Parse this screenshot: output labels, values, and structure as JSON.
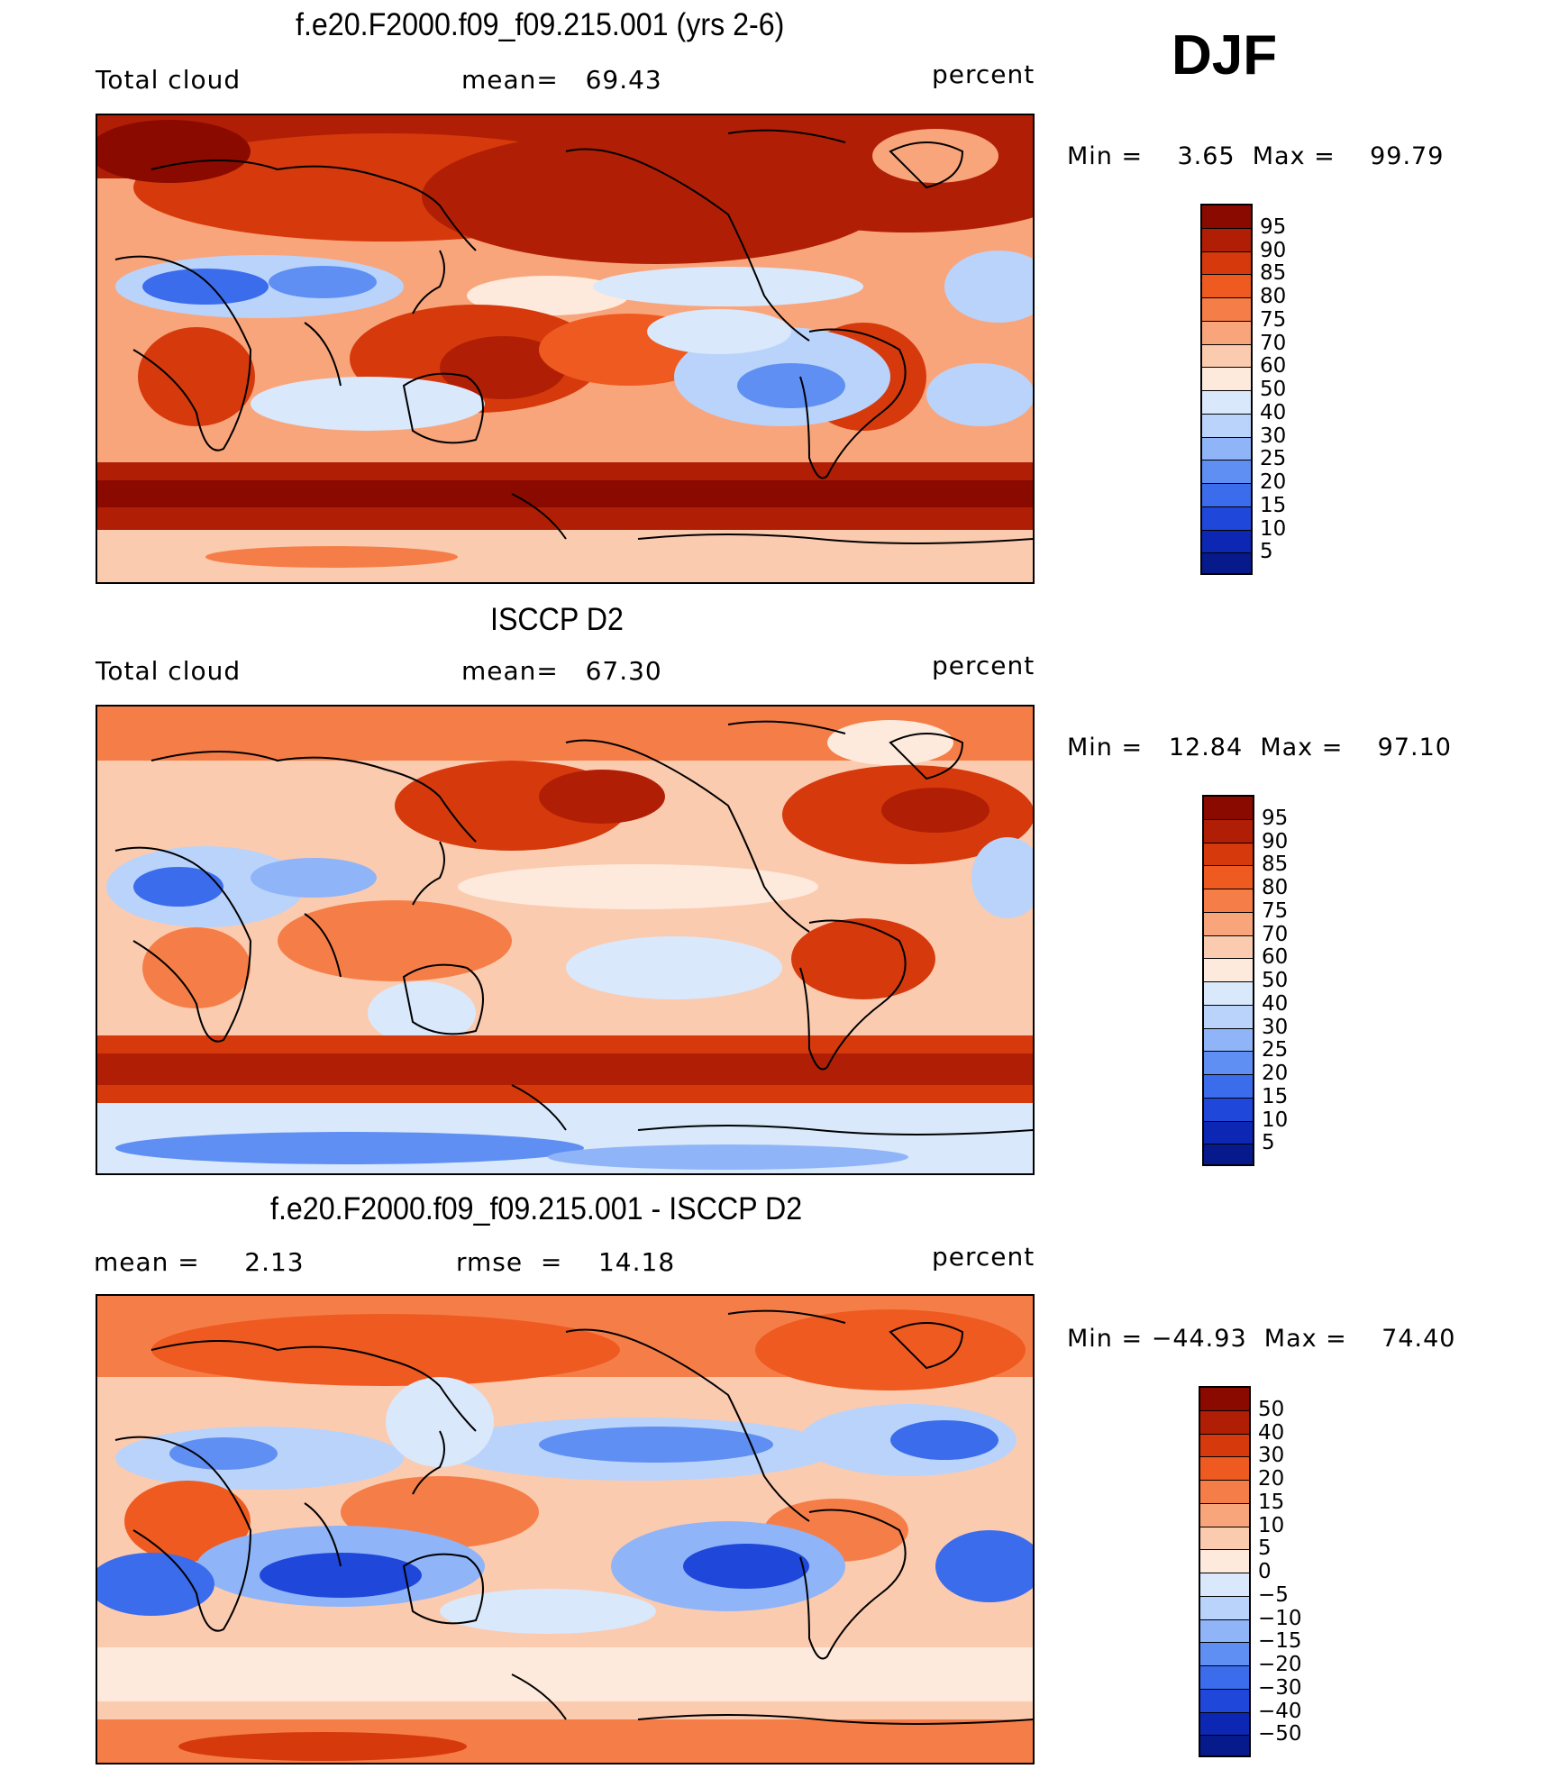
{
  "season": "DJF",
  "panels": [
    {
      "title": "f.e20.F2000.f09_f09.215.001 (yrs 2-6)",
      "left_label": "Total cloud",
      "mid_label": "mean=   69.43",
      "units": "percent",
      "min_max": "Min =    3.65  Max =    99.79",
      "levels": [
        "95",
        "90",
        "85",
        "80",
        "75",
        "70",
        "60",
        "50",
        "40",
        "30",
        "25",
        "20",
        "15",
        "10",
        "5"
      ],
      "colors": [
        "#8b0a00",
        "#b01f05",
        "#d63a0c",
        "#ef5a20",
        "#f57e48",
        "#f9a57c",
        "#fbcbb0",
        "#fdeadc",
        "#d9e8fb",
        "#b9d3fb",
        "#8fb4f8",
        "#5f8ff3",
        "#3b6cec",
        "#1f47da",
        "#0d27b5",
        "#061a8c"
      ]
    },
    {
      "title": "ISCCP D2",
      "left_label": "Total cloud",
      "mid_label": "mean=   67.30",
      "units": "percent",
      "min_max": "Min =   12.84  Max =    97.10",
      "levels": [
        "95",
        "90",
        "85",
        "80",
        "75",
        "70",
        "60",
        "50",
        "40",
        "30",
        "25",
        "20",
        "15",
        "10",
        "5"
      ],
      "colors": [
        "#8b0a00",
        "#b01f05",
        "#d63a0c",
        "#ef5a20",
        "#f57e48",
        "#f9a57c",
        "#fbcbb0",
        "#fdeadc",
        "#d9e8fb",
        "#b9d3fb",
        "#8fb4f8",
        "#5f8ff3",
        "#3b6cec",
        "#1f47da",
        "#0d27b5",
        "#061a8c"
      ]
    },
    {
      "title": "f.e20.F2000.f09_f09.215.001 - ISCCP D2",
      "left_label": "mean =     2.13",
      "mid_label": "rmse  =    14.18",
      "units": "percent",
      "min_max": "Min = −44.93  Max =    74.40",
      "levels": [
        "50",
        "40",
        "30",
        "20",
        "15",
        "10",
        "5",
        "0",
        "−5",
        "−10",
        "−15",
        "−20",
        "−30",
        "−40",
        "−50"
      ],
      "colors": [
        "#8b0a00",
        "#b01f05",
        "#d63a0c",
        "#ef5a20",
        "#f57e48",
        "#f9a57c",
        "#fbcbb0",
        "#fdeadc",
        "#d9e8fb",
        "#b9d3fb",
        "#8fb4f8",
        "#5f8ff3",
        "#3b6cec",
        "#1f47da",
        "#0d27b5",
        "#061a8c"
      ]
    }
  ]
}
